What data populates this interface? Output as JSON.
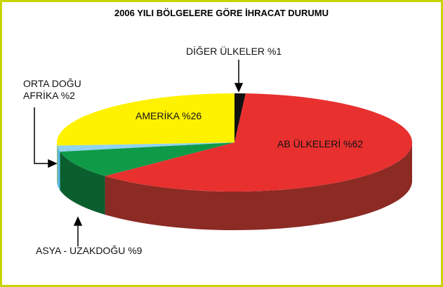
{
  "chart_data": {
    "type": "pie",
    "title": "2006 YILI BÖLGELERE GÖRE İHRACAT DURUMU",
    "categories": [
      "DİĞER ÜLKELER",
      "AB ÜLKELERİ",
      "ASYA - UZAKDOĞU",
      "ORTA DOĞU AFRİKA",
      "AMERİKA"
    ],
    "values": [
      1,
      62,
      9,
      2,
      26
    ],
    "value_labels": [
      "%1",
      "%62",
      "%9",
      "%2",
      "%26"
    ],
    "colors": [
      "#111111",
      "#e8302f",
      "#0f9a48",
      "#8fd3f0",
      "#fff200"
    ],
    "side_colors": [
      "#000000",
      "#8c2a24",
      "#0b5e2e",
      "#5ab8e0",
      "#c9bf00"
    ]
  }
}
